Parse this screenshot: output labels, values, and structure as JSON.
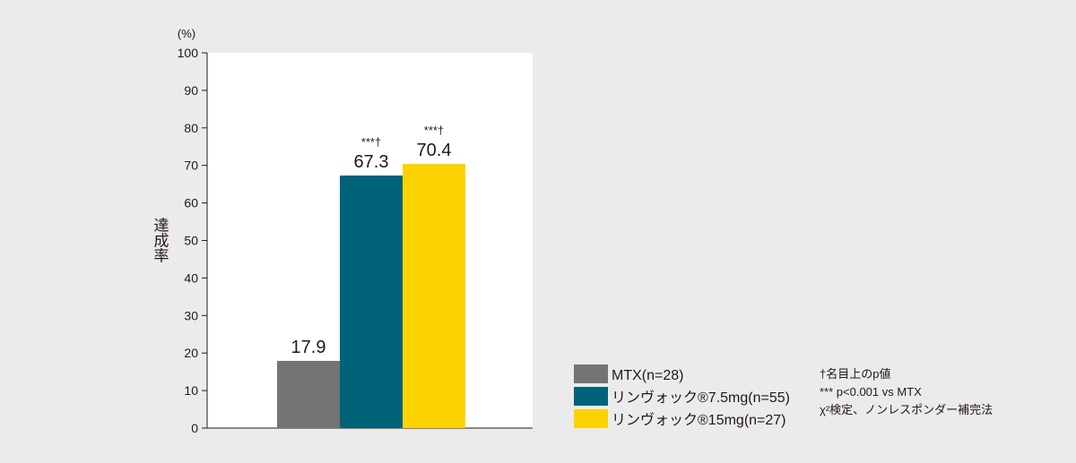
{
  "chart_data": {
    "type": "bar",
    "ylabel": "達成率",
    "unit": "(%)",
    "ylim": [
      0,
      100
    ],
    "yticks": [
      0,
      10,
      20,
      30,
      40,
      50,
      60,
      70,
      80,
      90,
      100
    ],
    "grid": false,
    "legend_position": "bottom-right",
    "series": [
      {
        "name": "MTX(n=28)",
        "value": 17.9,
        "label": "17.9",
        "sig": "",
        "color": "#747474"
      },
      {
        "name": "リンヴォック®7.5mg(n=55)",
        "value": 67.3,
        "label": "67.3",
        "sig": "***†",
        "color": "#006378"
      },
      {
        "name": "リンヴォック®15mg(n=27)",
        "value": 70.4,
        "label": "70.4",
        "sig": "***†",
        "color": "#fcd300"
      }
    ]
  },
  "notes": [
    "†名目上のp値",
    "*** p<0.001 vs MTX",
    "χ²検定、ノンレスポンダー補完法"
  ]
}
